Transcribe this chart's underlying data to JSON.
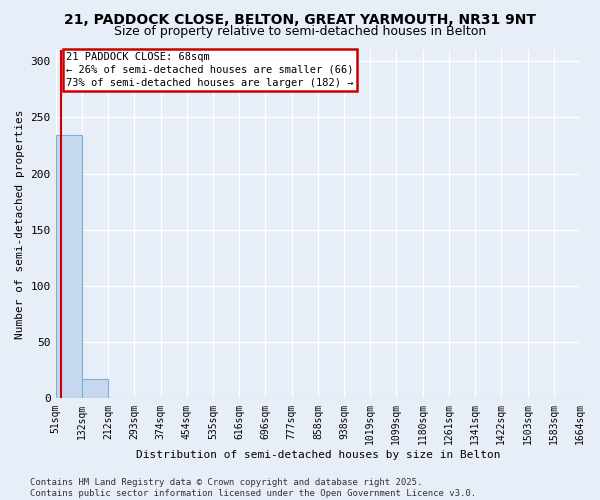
{
  "title": "21, PADDOCK CLOSE, BELTON, GREAT YARMOUTH, NR31 9NT",
  "subtitle": "Size of property relative to semi-detached houses in Belton",
  "xlabel": "Distribution of semi-detached houses by size in Belton",
  "ylabel": "Number of semi-detached properties",
  "bin_edges": [
    51,
    132,
    212,
    293,
    374,
    454,
    535,
    616,
    696,
    777,
    858,
    938,
    1019,
    1099,
    1180,
    1261,
    1341,
    1422,
    1503,
    1583,
    1664
  ],
  "bar_heights": [
    234,
    17,
    0,
    0,
    0,
    0,
    0,
    0,
    0,
    0,
    0,
    0,
    0,
    0,
    0,
    0,
    0,
    0,
    0,
    0
  ],
  "bar_color": "#c5d8f0",
  "bar_edge_color": "#7bafd4",
  "property_size": 68,
  "property_line_color": "#cc0000",
  "annotation_line1": "21 PADDOCK CLOSE: 68sqm",
  "annotation_line2": "← 26% of semi-detached houses are smaller (66)",
  "annotation_line3": "73% of semi-detached houses are larger (182) →",
  "annotation_box_color": "#cc0000",
  "ylim": [
    0,
    310
  ],
  "yticks": [
    0,
    50,
    100,
    150,
    200,
    250,
    300
  ],
  "footer_text": "Contains HM Land Registry data © Crown copyright and database right 2025.\nContains public sector information licensed under the Open Government Licence v3.0.",
  "background_color": "#e8eef8",
  "grid_color": "#ffffff",
  "title_fontsize": 10,
  "subtitle_fontsize": 9,
  "label_fontsize": 8,
  "tick_fontsize": 7,
  "footer_fontsize": 6.5
}
